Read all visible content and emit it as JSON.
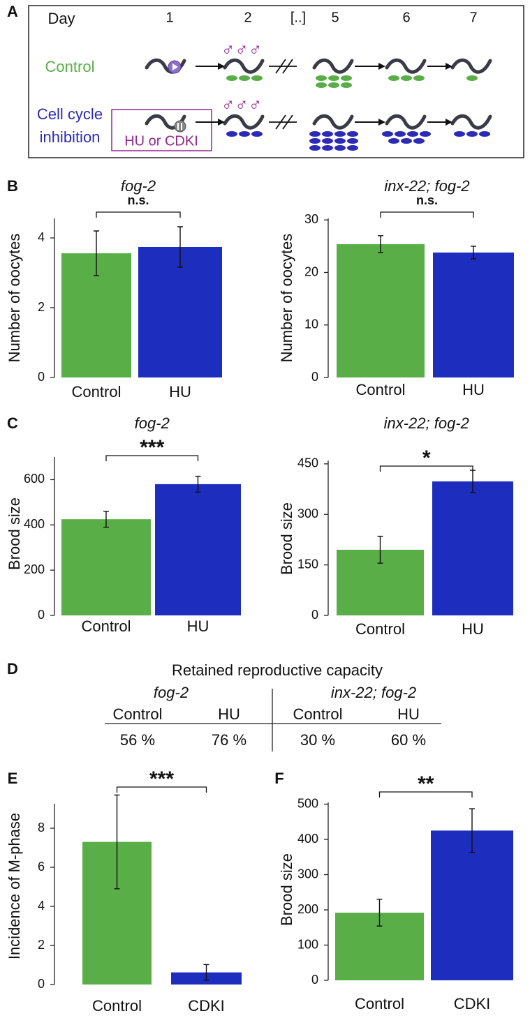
{
  "panel_labels": [
    "A",
    "B",
    "C",
    "D",
    "E",
    "F"
  ],
  "diagram": {
    "day_label": "Day",
    "days": [
      "1",
      "2",
      "[..]",
      "5",
      "6",
      "7"
    ],
    "rows": [
      {
        "label": [
          "Control"
        ],
        "color": "#5aae47"
      },
      {
        "label": [
          "Cell cycle",
          "inhibition"
        ],
        "color": "#2b2bb5"
      }
    ],
    "treatment": "HU or CDKI",
    "males": "♂♂♂",
    "male_color": "#93278f"
  },
  "chart_data": [
    {
      "type": "bar",
      "title": "fog-2",
      "y_label": "Number of oocytes",
      "categories": [
        "Control",
        "HU"
      ],
      "values": [
        3.56,
        3.74
      ],
      "errors": [
        0.64,
        0.58
      ],
      "colors": [
        "#5aae47",
        "#1d2dbd"
      ],
      "ylim": [
        0,
        4.56
      ],
      "yticks": [
        0,
        2,
        4
      ],
      "annotation": "n.s."
    },
    {
      "type": "bar",
      "title": "inx-22; fog-2",
      "y_label": "Number of oocytes",
      "categories": [
        "Control",
        "HU"
      ],
      "values": [
        25.4,
        23.8
      ],
      "errors": [
        1.6,
        1.2
      ],
      "colors": [
        "#5aae47",
        "#1d2dbd"
      ],
      "ylim": [
        0,
        30.3
      ],
      "yticks": [
        0,
        10,
        20,
        30
      ],
      "annotation": "n.s."
    },
    {
      "type": "bar",
      "title": "fog-2",
      "y_label": "Brood size",
      "categories": [
        "Control",
        "HU"
      ],
      "values": [
        425,
        580
      ],
      "errors": [
        35,
        35
      ],
      "colors": [
        "#5aae47",
        "#1d2dbd"
      ],
      "ylim": [
        0,
        700
      ],
      "yticks": [
        0,
        200,
        400,
        600
      ],
      "annotation": "***"
    },
    {
      "type": "bar",
      "title": "inx-22; fog-2",
      "y_label": "Brood size",
      "categories": [
        "Control",
        "HU"
      ],
      "values": [
        195,
        398
      ],
      "errors": [
        40,
        33
      ],
      "colors": [
        "#5aae47",
        "#1d2dbd"
      ],
      "ylim": [
        0,
        460
      ],
      "yticks": [
        0,
        150,
        300,
        450
      ],
      "annotation": "*"
    },
    {
      "type": "bar",
      "y_label": "Incidence of  M-phase",
      "categories": [
        "Control",
        "CDKI"
      ],
      "values": [
        7.3,
        0.62
      ],
      "errors": [
        2.4,
        0.4
      ],
      "colors": [
        "#5aae47",
        "#1d2dbd"
      ],
      "ylim": [
        0,
        9.25
      ],
      "yticks": [
        0,
        2,
        4,
        6,
        8
      ],
      "annotation": "***"
    },
    {
      "type": "bar",
      "y_label": "Brood size",
      "categories": [
        "Control",
        "CDKI"
      ],
      "values": [
        192,
        425
      ],
      "errors": [
        38,
        62
      ],
      "colors": [
        "#5aae47",
        "#1d2dbd"
      ],
      "ylim": [
        0,
        505
      ],
      "yticks": [
        0,
        100,
        200,
        300,
        400,
        500
      ],
      "annotation": "**"
    }
  ],
  "table": {
    "title": "Retained reproductive capacity",
    "groups": [
      "fog-2",
      "inx-22; fog-2"
    ],
    "header": [
      "Control",
      "HU",
      "Control",
      "HU"
    ],
    "row": [
      "56 %",
      "76 %",
      "30 %",
      "60 %"
    ]
  }
}
